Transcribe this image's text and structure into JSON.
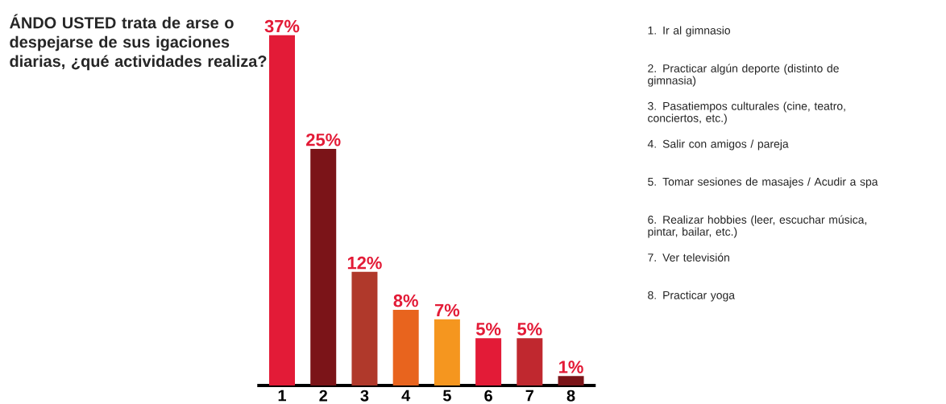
{
  "chart_data": {
    "type": "bar",
    "title": "**ÁNDO USTED** trata de arse o despejarse de sus igaciones diarias, ¿qué actividades realiza?",
    "categories": [
      "1",
      "2",
      "3",
      "4",
      "5",
      "6",
      "7",
      "8"
    ],
    "values": [
      37,
      25,
      12,
      8,
      7,
      5,
      5,
      1
    ],
    "value_labels": [
      "37%",
      "25%",
      "12%",
      "8%",
      "7%",
      "5%",
      "5%",
      "1%"
    ],
    "colors": [
      "#e31b37",
      "#7b1418",
      "#b0392b",
      "#e8641e",
      "#f5961f",
      "#e31b37",
      "#c0282f",
      "#7b1418"
    ],
    "annotations": [
      "1. Ir al gimnasio",
      "2. Practicar algún deporte (distinto de gimnasia)",
      "3. Pasatiempos culturales (cine, teatro, conciertos, etc.)",
      "4. Salir con amigos / pareja",
      "5. Tomar sesiones de masajes / Acudir a spa",
      "6. Realizar hobbies (leer, escuchar música, pintar, bailar, etc.)",
      "7. Ver televisión",
      "8. Practicar yoga"
    ]
  }
}
